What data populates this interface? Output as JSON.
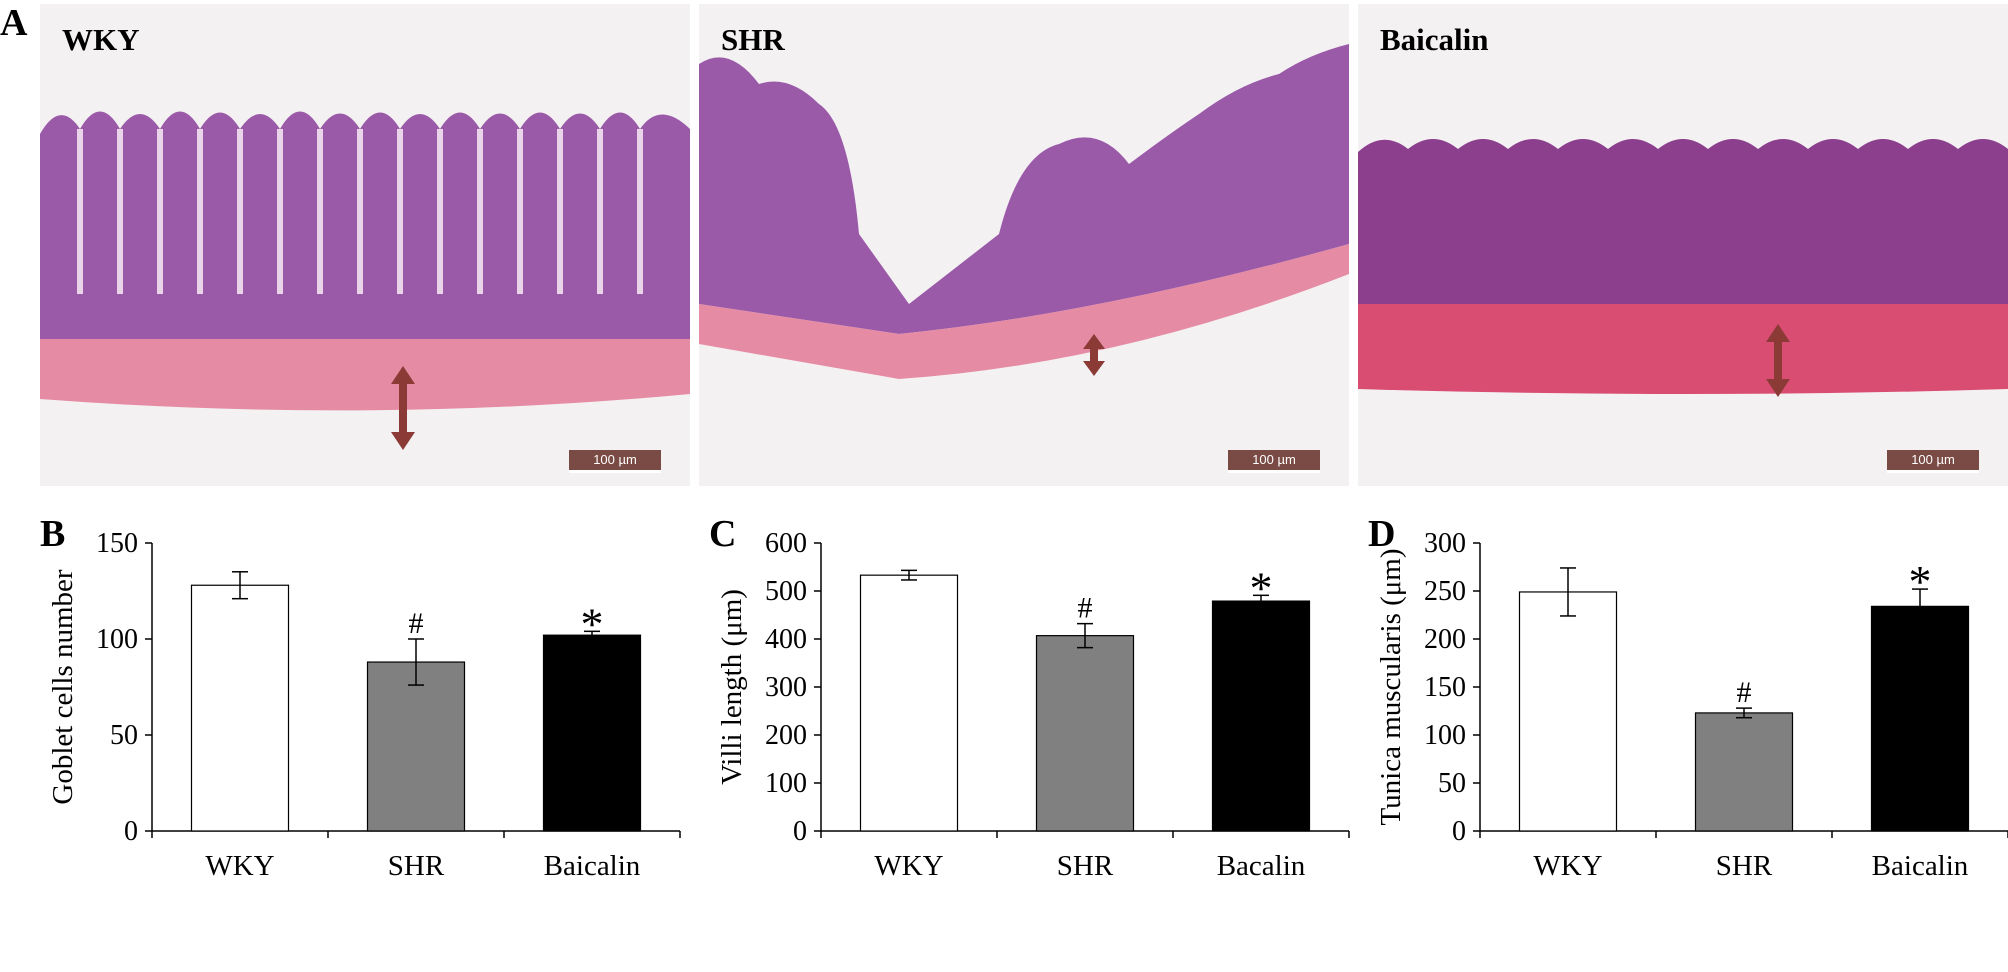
{
  "panel_a": {
    "letter": "A",
    "images": [
      {
        "label": "WKY",
        "scale_bar": "100 µm",
        "muscle_color": "#e58ba4",
        "mucosa_color": "#9a5aa8"
      },
      {
        "label": "SHR",
        "scale_bar": "100 µm",
        "muscle_color": "#e58ba4",
        "mucosa_color": "#9a5aa8"
      },
      {
        "label": "Baicalin",
        "scale_bar": "100 µm",
        "muscle_color": "#d94d73",
        "mucosa_color": "#8b3f8c"
      }
    ],
    "arrow_color": "#8b3a36"
  },
  "charts": [
    {
      "letter": "B",
      "ylabel": "Goblet cells number"
    },
    {
      "letter": "C",
      "ylabel": "Villi length  (μm)"
    },
    {
      "letter": "D",
      "ylabel": "Tunica muscularis  (μm)"
    }
  ],
  "chart_data": [
    {
      "type": "bar",
      "title": "",
      "xlabel": "",
      "ylabel": "Goblet cells number",
      "categories": [
        "WKY",
        "SHR",
        "Baicalin"
      ],
      "values": [
        128,
        88,
        102
      ],
      "errors": [
        7,
        12,
        2
      ],
      "colors": [
        "#ffffff",
        "#808080",
        "#000000"
      ],
      "annotations": [
        "",
        "#",
        "*"
      ],
      "ylim": [
        0,
        150
      ],
      "yticks": [
        0,
        50,
        100,
        150
      ],
      "grid": false
    },
    {
      "type": "bar",
      "title": "",
      "xlabel": "",
      "ylabel": "Villi length  (μm)",
      "categories": [
        "WKY",
        "SHR",
        "Bacalin"
      ],
      "values": [
        533,
        407,
        479
      ],
      "errors": [
        10,
        25,
        12
      ],
      "colors": [
        "#ffffff",
        "#808080",
        "#000000"
      ],
      "annotations": [
        "",
        "#",
        "*"
      ],
      "ylim": [
        0,
        600
      ],
      "yticks": [
        0,
        100,
        200,
        300,
        400,
        500,
        600
      ],
      "grid": false
    },
    {
      "type": "bar",
      "title": "",
      "xlabel": "",
      "ylabel": "Tunica muscularis  (μm)",
      "categories": [
        "WKY",
        "SHR",
        "Baicalin"
      ],
      "values": [
        249,
        123,
        234
      ],
      "errors": [
        25,
        5,
        18
      ],
      "colors": [
        "#ffffff",
        "#808080",
        "#000000"
      ],
      "annotations": [
        "",
        "#",
        "*"
      ],
      "ylim": [
        0,
        300
      ],
      "yticks": [
        0,
        50,
        100,
        150,
        200,
        250,
        300
      ],
      "grid": false
    }
  ]
}
